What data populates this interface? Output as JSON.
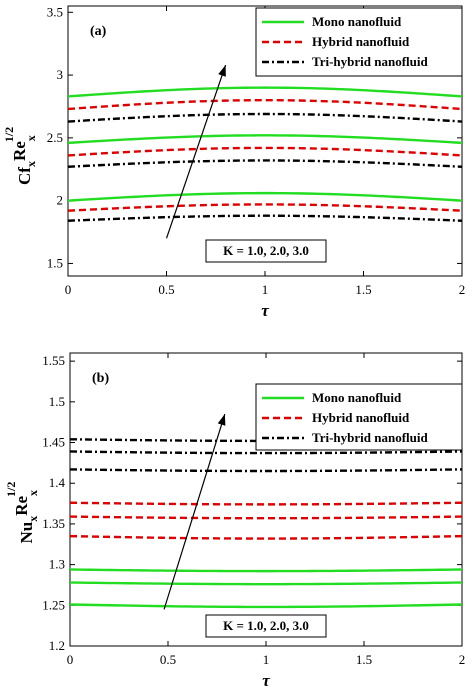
{
  "chart_data": [
    {
      "type": "line",
      "panel_label": "(a)",
      "xlabel": "τ",
      "ylabel_main": "Cf",
      "ylabel_sub": "x",
      "ylabel_main2": "Re",
      "ylabel_sub2": "x",
      "ylabel_sup": "1/2",
      "xlim": [
        0,
        2
      ],
      "ylim": [
        1.4,
        3.55
      ],
      "xticks": [
        0,
        0.5,
        1,
        1.5,
        2
      ],
      "xtick_labels": [
        "0",
        "0.5",
        "1",
        "1.5",
        "2"
      ],
      "yticks": [
        1.5,
        2,
        2.5,
        3,
        3.5
      ],
      "ytick_labels": [
        "1.5",
        "2",
        "2.5",
        "3",
        "3.5"
      ],
      "legend": [
        {
          "label": "Mono nanofluid",
          "color": "#22dd22",
          "dash": "solid"
        },
        {
          "label": "Hybrid nanofluid",
          "color": "#e00000",
          "dash": "dash"
        },
        {
          "label": "Tri-hybrid nanofluid",
          "color": "#000000",
          "dash": "dashdot"
        }
      ],
      "legend_position": "top-right",
      "annotation": "K = 1.0, 2.0, 3.0",
      "arrow": {
        "from": [
          0.5,
          1.7
        ],
        "to": [
          0.8,
          3.08
        ]
      },
      "x": [
        0,
        0.25,
        0.5,
        0.75,
        1,
        1.25,
        1.5,
        1.75,
        2
      ],
      "series": [
        {
          "kind": "Mono nanofluid",
          "K": 1.0,
          "base": 2.0,
          "amp": 0.06
        },
        {
          "kind": "Hybrid nanofluid",
          "K": 1.0,
          "base": 1.92,
          "amp": 0.05
        },
        {
          "kind": "Tri-hybrid nanofluid",
          "K": 1.0,
          "base": 1.84,
          "amp": 0.04
        },
        {
          "kind": "Mono nanofluid",
          "K": 2.0,
          "base": 2.46,
          "amp": 0.06
        },
        {
          "kind": "Hybrid nanofluid",
          "K": 2.0,
          "base": 2.36,
          "amp": 0.06
        },
        {
          "kind": "Tri-hybrid nanofluid",
          "K": 2.0,
          "base": 2.27,
          "amp": 0.05
        },
        {
          "kind": "Mono nanofluid",
          "K": 3.0,
          "base": 2.83,
          "amp": 0.07
        },
        {
          "kind": "Hybrid nanofluid",
          "K": 3.0,
          "base": 2.73,
          "amp": 0.07
        },
        {
          "kind": "Tri-hybrid nanofluid",
          "K": 3.0,
          "base": 2.63,
          "amp": 0.06
        }
      ]
    },
    {
      "type": "line",
      "panel_label": "(b)",
      "xlabel": "τ",
      "ylabel_main": "Nu",
      "ylabel_sub": "x",
      "ylabel_main2": "Re",
      "ylabel_sub2": "x",
      "ylabel_sup": "1/2",
      "xlim": [
        0,
        2
      ],
      "ylim": [
        1.2,
        1.56
      ],
      "xticks": [
        0,
        0.5,
        1,
        1.5,
        2
      ],
      "xtick_labels": [
        "0",
        "0.5",
        "1",
        "1.5",
        "2"
      ],
      "yticks": [
        1.2,
        1.25,
        1.3,
        1.35,
        1.4,
        1.45,
        1.5,
        1.55
      ],
      "ytick_labels": [
        "1.2",
        "1.25",
        "1.3",
        "1.35",
        "1.4",
        "1.45",
        "1.5",
        "1.55"
      ],
      "legend": [
        {
          "label": "Mono nanofluid",
          "color": "#22dd22",
          "dash": "solid"
        },
        {
          "label": "Hybrid nanofluid",
          "color": "#e00000",
          "dash": "dash"
        },
        {
          "label": "Tri-hybrid nanofluid",
          "color": "#000000",
          "dash": "dashdot"
        }
      ],
      "legend_position": "top-right",
      "annotation": "K = 1.0, 2.0, 3.0",
      "arrow": {
        "from": [
          0.48,
          1.245
        ],
        "to": [
          0.79,
          1.485
        ]
      },
      "x": [
        0,
        0.25,
        0.5,
        0.75,
        1,
        1.25,
        1.5,
        1.75,
        2
      ],
      "series": [
        {
          "kind": "Mono nanofluid",
          "K": 1.0,
          "base": 1.251,
          "amp": -0.003
        },
        {
          "kind": "Mono nanofluid",
          "K": 2.0,
          "base": 1.278,
          "amp": -0.002
        },
        {
          "kind": "Mono nanofluid",
          "K": 3.0,
          "base": 1.294,
          "amp": -0.002
        },
        {
          "kind": "Hybrid nanofluid",
          "K": 1.0,
          "base": 1.335,
          "amp": -0.003
        },
        {
          "kind": "Hybrid nanofluid",
          "K": 2.0,
          "base": 1.359,
          "amp": -0.002
        },
        {
          "kind": "Hybrid nanofluid",
          "K": 3.0,
          "base": 1.376,
          "amp": -0.002
        },
        {
          "kind": "Tri-hybrid nanofluid",
          "K": 1.0,
          "base": 1.417,
          "amp": -0.002
        },
        {
          "kind": "Tri-hybrid nanofluid",
          "K": 2.0,
          "base": 1.439,
          "amp": -0.002
        },
        {
          "kind": "Tri-hybrid nanofluid",
          "K": 3.0,
          "base": 1.454,
          "amp": -0.002
        }
      ]
    }
  ]
}
